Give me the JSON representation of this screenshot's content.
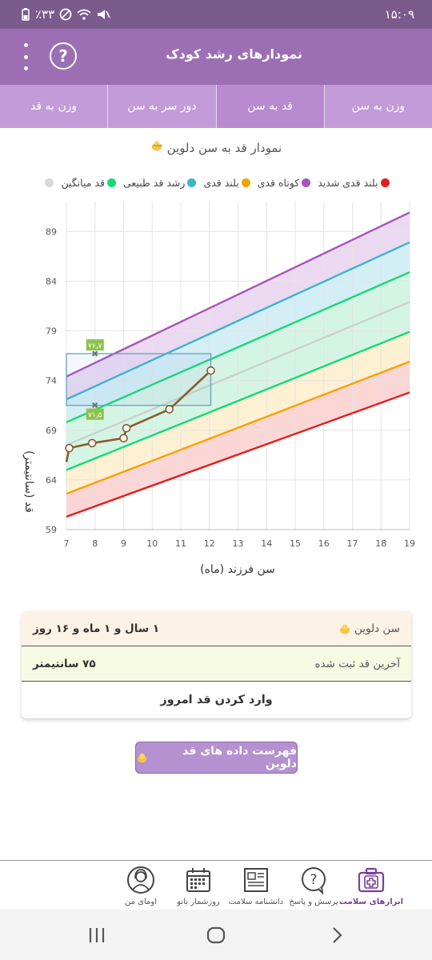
{
  "status_bar": {
    "time": "۱۵:۰۹",
    "battery": "٪۳۳"
  },
  "app_bar": {
    "title": "نمودارهای رشد کودک",
    "help_icon": "question-circle-icon",
    "menu_icon": "kebab-menu-icon"
  },
  "tabs": [
    {
      "label": "وزن به سن",
      "active": false
    },
    {
      "label": "قد به سن",
      "active": true
    },
    {
      "label": "دور سر به سن",
      "active": false
    },
    {
      "label": "وزن به قد",
      "active": false
    }
  ],
  "chart_header": {
    "title": "نمودار قد به سن دلوین"
  },
  "legend": [
    {
      "label": "بلند قدی شدید",
      "color": "#e02020"
    },
    {
      "label": "کوتاه قدی",
      "color": "#a855b8"
    },
    {
      "label": "بلند قدی",
      "color": "#f5a300"
    },
    {
      "label": "رشد قد طبیعی",
      "color": "#3fb2cc"
    },
    {
      "label": "قد میانگین",
      "color": "#15d97a"
    },
    {
      "label": "",
      "color": "#d8d8d8"
    }
  ],
  "chart_data": {
    "type": "line",
    "xlabel": "سن فرزند (ماه)",
    "ylabel": "قد (سانتیمتر)",
    "xlim": [
      7,
      19
    ],
    "ylim": [
      59,
      92
    ],
    "x_ticks": [
      7,
      8,
      9,
      10,
      11,
      12,
      13,
      14,
      15,
      16,
      17,
      18,
      19
    ],
    "y_ticks": [
      59,
      64,
      69,
      74,
      79,
      84,
      89
    ],
    "grid": true,
    "reference_curves": [
      {
        "name": "red",
        "color": "#e02020",
        "x": [
          7,
          19
        ],
        "y": [
          60.3,
          72.8
        ]
      },
      {
        "name": "orange",
        "color": "#f5a300",
        "x": [
          7,
          19
        ],
        "y": [
          62.6,
          75.9
        ]
      },
      {
        "name": "green",
        "color": "#15d97a",
        "x": [
          7,
          19
        ],
        "y": [
          65,
          78.9
        ]
      },
      {
        "name": "gray",
        "color": "#c9d1cf",
        "x": [
          7,
          19
        ],
        "y": [
          67.5,
          81.9
        ]
      },
      {
        "name": "green-upper",
        "color": "#15d97a",
        "x": [
          7,
          19
        ],
        "y": [
          69.8,
          84.9
        ]
      },
      {
        "name": "blue",
        "color": "#3fb2cc",
        "x": [
          7,
          19
        ],
        "y": [
          72.1,
          87.9
        ]
      },
      {
        "name": "purple",
        "color": "#a855b8",
        "x": [
          7,
          19
        ],
        "y": [
          74.4,
          90.9
        ]
      }
    ],
    "bands": [
      {
        "from": "red",
        "to": "orange",
        "fill": "#fcd5d5"
      },
      {
        "from": "orange",
        "to": "green",
        "fill": "#fdf0d3"
      },
      {
        "from": "green",
        "to": "green-upper",
        "fill": "#d5f5e4"
      },
      {
        "from": "green-upper",
        "to": "blue",
        "fill": "#d3eef5"
      },
      {
        "from": "blue",
        "to": "purple",
        "fill": "#ead9f1"
      }
    ],
    "child_series": {
      "color": "#8a5a2e",
      "x": [
        7.0,
        7.1,
        7.9,
        9.0,
        9.1,
        10.6,
        12.05
      ],
      "y": [
        65.8,
        67.2,
        67.7,
        68.2,
        69.2,
        71.1,
        75.0
      ]
    },
    "highlight": {
      "x_range": [
        7,
        12.05
      ],
      "y_range": [
        71.5,
        76.7
      ],
      "top_label": "۷۶٫۷",
      "bottom_label": "۷۱٫۵",
      "marker_x": 8
    }
  },
  "summary_card": {
    "age_label": "سن دلوین",
    "age_value": "۱ سال و ۱ ماه و ۱۶ روز",
    "last_height_label": "آخرین قد ثبت شده",
    "last_height_value": "۷۵ سانتیمتر",
    "enter_today": "وارد کردن قد امروز"
  },
  "list_button": {
    "label": "فهرست داده های قد دلوین"
  },
  "bottom_nav": [
    {
      "label": "ابزارهای سلامت",
      "icon": "medical-kit-icon",
      "active": true
    },
    {
      "label": "پرسش و پاسخ",
      "icon": "question-bubble-icon",
      "active": false
    },
    {
      "label": "دانشنامه سلامت",
      "icon": "newspaper-icon",
      "active": false
    },
    {
      "label": "روزشمار بانو",
      "icon": "calendar-icon",
      "active": false
    },
    {
      "label": "اومای من",
      "icon": "woman-avatar-icon",
      "active": false
    }
  ]
}
